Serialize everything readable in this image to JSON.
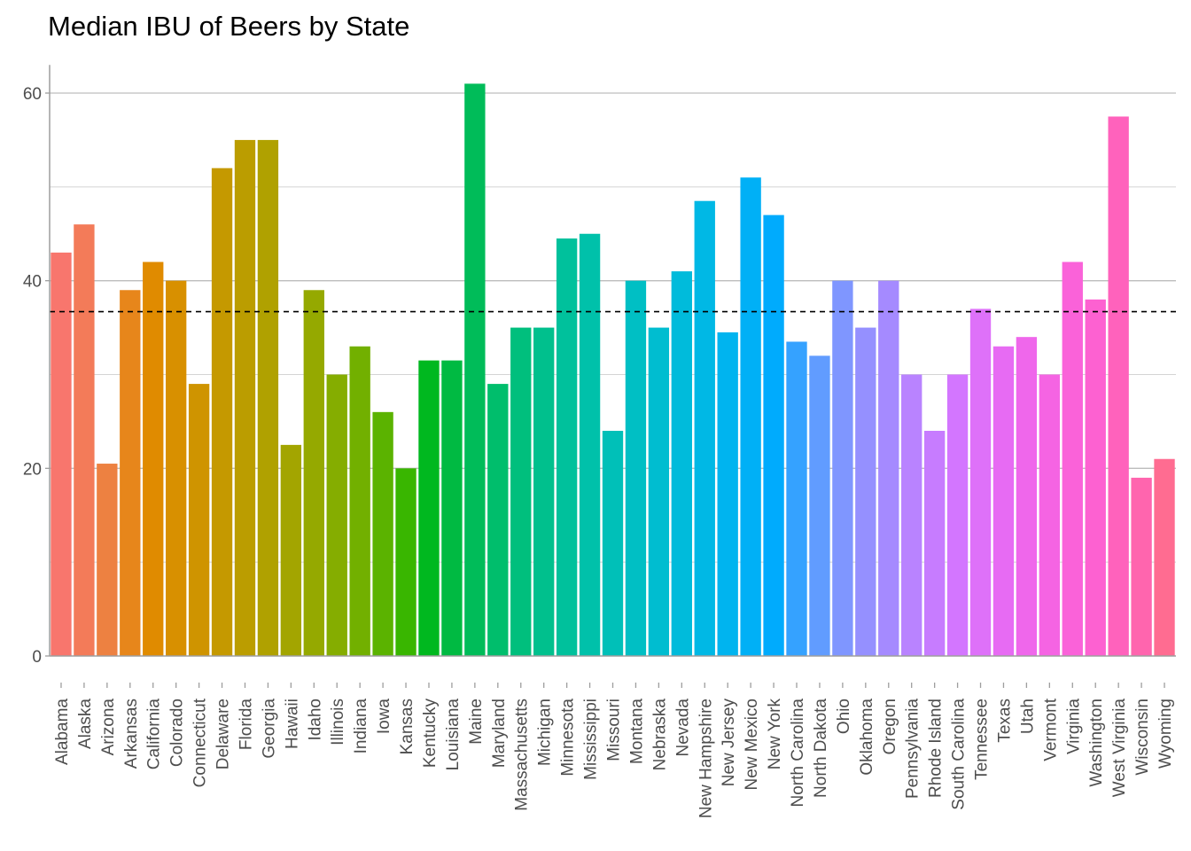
{
  "chart_data": {
    "type": "bar",
    "title": "Median IBU of Beers by State",
    "xlabel": "",
    "ylabel": "",
    "ylim": [
      0,
      63
    ],
    "yticks": [
      0,
      20,
      40,
      60
    ],
    "reference_line": {
      "value": 36.7,
      "style": "dashed",
      "color": "#000000"
    },
    "grid": true,
    "legend": "none",
    "categories": [
      "Alabama",
      "Alaska",
      "Arizona",
      "Arkansas",
      "California",
      "Colorado",
      "Connecticut",
      "Delaware",
      "Florida",
      "Georgia",
      "Hawaii",
      "Idaho",
      "Illinois",
      "Indiana",
      "Iowa",
      "Kansas",
      "Kentucky",
      "Louisiana",
      "Maine",
      "Maryland",
      "Massachusetts",
      "Michigan",
      "Minnesota",
      "Mississippi",
      "Missouri",
      "Montana",
      "Nebraska",
      "Nevada",
      "New Hampshire",
      "New Jersey",
      "New Mexico",
      "New York",
      "North Carolina",
      "North Dakota",
      "Ohio",
      "Oklahoma",
      "Oregon",
      "Pennsylvania",
      "Rhode Island",
      "South Carolina",
      "Tennessee",
      "Texas",
      "Utah",
      "Vermont",
      "Virginia",
      "Washington",
      "West Virginia",
      "Wisconsin",
      "Wyoming"
    ],
    "values": [
      43,
      46,
      20.5,
      39,
      42,
      40,
      29,
      52,
      55,
      55,
      22.5,
      39,
      30,
      33,
      26,
      20,
      31.5,
      31.5,
      61,
      29,
      35,
      35,
      44.5,
      45,
      24,
      40,
      35,
      41,
      48.5,
      34.5,
      51,
      47,
      33.5,
      32,
      40,
      35,
      40,
      30,
      24,
      30,
      37,
      33,
      34,
      30,
      42,
      38,
      57.5,
      19,
      21
    ],
    "colors": [
      "#F8766D",
      "#F37B59",
      "#ED8141",
      "#E7861B",
      "#E08B00",
      "#D89000",
      "#CF9400",
      "#C59900",
      "#BB9D00",
      "#B0A100",
      "#A3A500",
      "#95A900",
      "#85AD00",
      "#72B000",
      "#5BB300",
      "#39B600",
      "#00B81F",
      "#00BA42",
      "#00BC59",
      "#00BE6C",
      "#00BF7D",
      "#00C08D",
      "#00C19C",
      "#00C1AA",
      "#00C0B8",
      "#00BFC4",
      "#00BDD0",
      "#00BBDB",
      "#00B8E5",
      "#00B4EF",
      "#00B0F6",
      "#00ABFD",
      "#35A2FF",
      "#619CFF",
      "#7F96FF",
      "#9590FF",
      "#A58AFF",
      "#B983FF",
      "#C77CFF",
      "#D376FF",
      "#DE71F9",
      "#E76BF3",
      "#EF67EB",
      "#F564E3",
      "#FA62D9",
      "#FD61D1",
      "#FF62BC",
      "#FF65AE",
      "#FF6C91"
    ]
  }
}
